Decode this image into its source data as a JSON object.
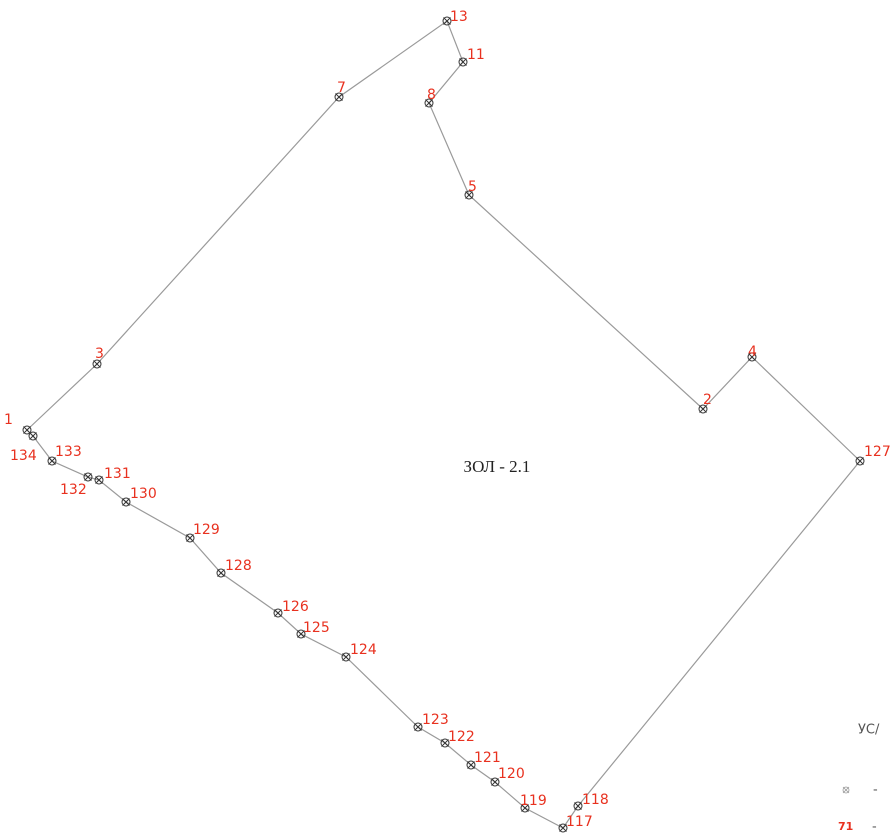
{
  "zone": {
    "label": "ЗОЛ - 2.1"
  },
  "points": [
    {
      "label": "1"
    },
    {
      "label": "3"
    },
    {
      "label": "7"
    },
    {
      "label": "13"
    },
    {
      "label": "11"
    },
    {
      "label": "8"
    },
    {
      "label": "5"
    },
    {
      "label": "2"
    },
    {
      "label": "4"
    },
    {
      "label": "127"
    },
    {
      "label": "118"
    },
    {
      "label": "117"
    },
    {
      "label": "119"
    },
    {
      "label": "120"
    },
    {
      "label": "121"
    },
    {
      "label": "122"
    },
    {
      "label": "123"
    },
    {
      "label": "124"
    },
    {
      "label": "125"
    },
    {
      "label": "126"
    },
    {
      "label": "128"
    },
    {
      "label": "129"
    },
    {
      "label": "130"
    },
    {
      "label": "131"
    },
    {
      "label": "132"
    },
    {
      "label": "133"
    },
    {
      "label": "134"
    }
  ],
  "legend": {
    "title": "УС/",
    "rows": [
      {
        "text": "-"
      },
      {
        "label": "71",
        "text": "-"
      }
    ]
  }
}
